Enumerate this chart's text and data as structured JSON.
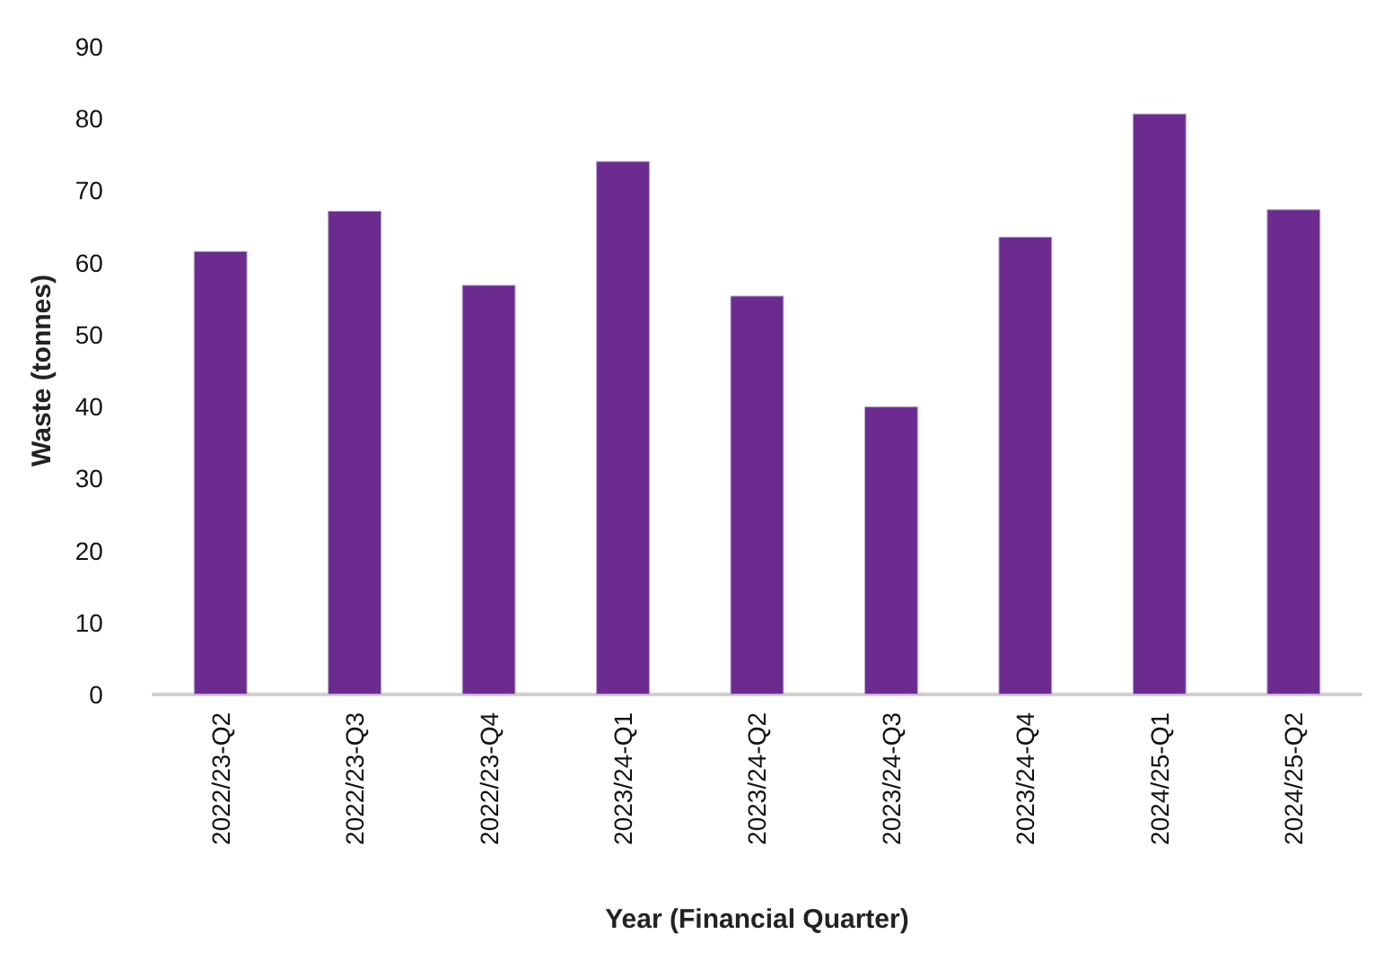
{
  "chart_data": {
    "type": "bar",
    "xlabel": "Year (Financial Quarter)",
    "ylabel": "Waste (tonnes)",
    "categories": [
      "2022/23-Q2",
      "2022/23-Q3",
      "2022/23-Q4",
      "2023/24-Q1",
      "2023/24-Q2",
      "2023/24-Q3",
      "2023/24-Q4",
      "2024/25-Q1",
      "2024/25-Q2"
    ],
    "values": [
      61.6,
      67.2,
      56.9,
      74.1,
      55.4,
      40.0,
      63.6,
      80.7,
      67.4
    ],
    "color": "#6c2c8f",
    "ylim": [
      0,
      90
    ],
    "yticks": [
      0,
      10,
      20,
      30,
      40,
      50,
      60,
      70,
      80,
      90
    ],
    "grid": false
  }
}
